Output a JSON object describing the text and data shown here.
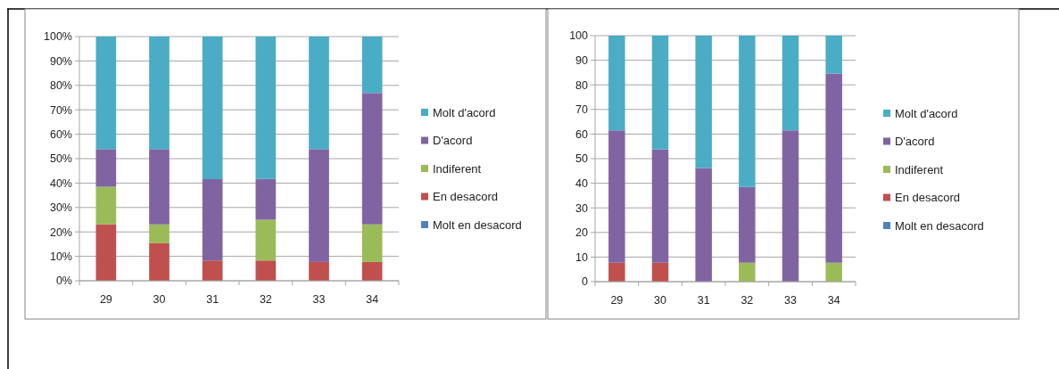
{
  "chart_data": [
    {
      "type": "bar",
      "stacked": true,
      "categories": [
        "29",
        "30",
        "31",
        "32",
        "33",
        "34"
      ],
      "ylim": [
        0,
        100
      ],
      "yticks": [
        {
          "value": 0,
          "label": "0%"
        },
        {
          "value": 10,
          "label": "10%"
        },
        {
          "value": 20,
          "label": "20%"
        },
        {
          "value": 30,
          "label": "30%"
        },
        {
          "value": 40,
          "label": "40%"
        },
        {
          "value": 50,
          "label": "50%"
        },
        {
          "value": 60,
          "label": "60%"
        },
        {
          "value": 70,
          "label": "70%"
        },
        {
          "value": 80,
          "label": "80%"
        },
        {
          "value": 90,
          "label": "90%"
        },
        {
          "value": 100,
          "label": "100%"
        }
      ],
      "grid": "y",
      "legend": "right",
      "series": [
        {
          "name": "Molt en desacord",
          "color": "#4f81bd",
          "values": [
            0,
            0,
            0,
            0,
            0,
            0
          ]
        },
        {
          "name": "En desacord",
          "color": "#c0504d",
          "values": [
            23.1,
            15.4,
            8.3,
            8.3,
            7.7,
            7.7
          ]
        },
        {
          "name": "Indiferent",
          "color": "#9bbb59",
          "values": [
            15.4,
            7.7,
            0,
            16.7,
            0,
            15.4
          ]
        },
        {
          "name": "D'acord",
          "color": "#8064a2",
          "values": [
            15.4,
            30.8,
            33.3,
            16.7,
            46.2,
            53.8
          ]
        },
        {
          "name": "Molt d'acord",
          "color": "#4bacc6",
          "values": [
            46.1,
            46.1,
            58.4,
            58.3,
            46.1,
            23.1
          ]
        }
      ]
    },
    {
      "type": "bar",
      "stacked": true,
      "categories": [
        "29",
        "30",
        "31",
        "32",
        "33",
        "34"
      ],
      "ylim": [
        0,
        100
      ],
      "yticks": [
        0,
        10,
        20,
        30,
        40,
        50,
        60,
        70,
        80,
        90,
        100
      ],
      "grid": "y",
      "legend": "right",
      "series": [
        {
          "name": "Molt en desacord",
          "color": "#4f81bd",
          "values": [
            0,
            0,
            0,
            0,
            0,
            0
          ]
        },
        {
          "name": "En desacord",
          "color": "#c0504d",
          "values": [
            7.7,
            7.7,
            0,
            0,
            0,
            0
          ]
        },
        {
          "name": "Indiferent",
          "color": "#9bbb59",
          "values": [
            0,
            0,
            0,
            7.7,
            0,
            7.7
          ]
        },
        {
          "name": "D'acord",
          "color": "#8064a2",
          "values": [
            53.8,
            46.1,
            46.2,
            30.8,
            61.5,
            76.9
          ]
        },
        {
          "name": "Molt d'acord",
          "color": "#4bacc6",
          "values": [
            38.5,
            46.2,
            53.8,
            61.5,
            38.5,
            15.4
          ]
        }
      ]
    }
  ]
}
